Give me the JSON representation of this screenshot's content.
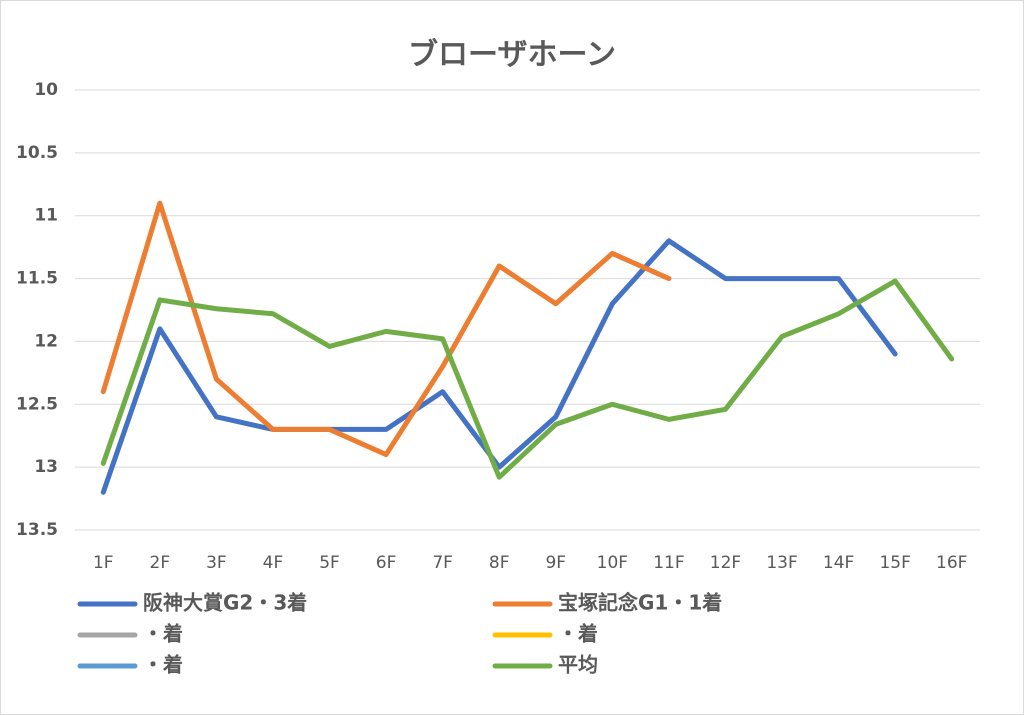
{
  "chart_data": {
    "type": "line",
    "title": "ブローザホーン",
    "categories": [
      "1F",
      "2F",
      "3F",
      "4F",
      "5F",
      "6F",
      "7F",
      "8F",
      "9F",
      "10F",
      "11F",
      "12F",
      "13F",
      "14F",
      "15F",
      "16F"
    ],
    "series": [
      {
        "name": "阪神大賞G2・3着",
        "color": "#4472c4",
        "values": [
          13.2,
          11.9,
          12.6,
          12.7,
          12.7,
          12.7,
          12.4,
          13.0,
          12.6,
          11.7,
          11.2,
          11.5,
          11.5,
          11.5,
          12.1,
          null
        ]
      },
      {
        "name": "宝塚記念G1・1着",
        "color": "#ed7d31",
        "values": [
          12.4,
          10.9,
          12.3,
          12.7,
          12.7,
          12.9,
          12.2,
          11.4,
          11.7,
          11.3,
          11.5,
          null,
          null,
          null,
          null,
          null
        ]
      },
      {
        "name": "・着",
        "color": "#a5a5a5",
        "values": [
          null,
          null,
          null,
          null,
          null,
          null,
          null,
          null,
          null,
          null,
          null,
          null,
          null,
          null,
          null,
          null
        ]
      },
      {
        "name": "・着",
        "color": "#ffc000",
        "values": [
          null,
          null,
          null,
          null,
          null,
          null,
          null,
          null,
          null,
          null,
          null,
          null,
          null,
          null,
          null,
          null
        ]
      },
      {
        "name": "・着",
        "color": "#5b9bd5",
        "values": [
          null,
          null,
          null,
          null,
          null,
          null,
          null,
          null,
          null,
          null,
          null,
          null,
          null,
          null,
          null,
          null
        ]
      },
      {
        "name": "平均",
        "color": "#70ad47",
        "values": [
          12.97,
          11.67,
          11.74,
          11.78,
          12.04,
          11.92,
          11.98,
          13.08,
          12.66,
          12.5,
          12.62,
          12.54,
          11.96,
          11.78,
          11.52,
          12.14
        ]
      }
    ],
    "ylim": [
      10,
      13.5
    ],
    "y_reversed": true,
    "yticks": [
      10,
      10.5,
      11,
      11.5,
      12,
      12.5,
      13,
      13.5
    ],
    "grid": true
  }
}
